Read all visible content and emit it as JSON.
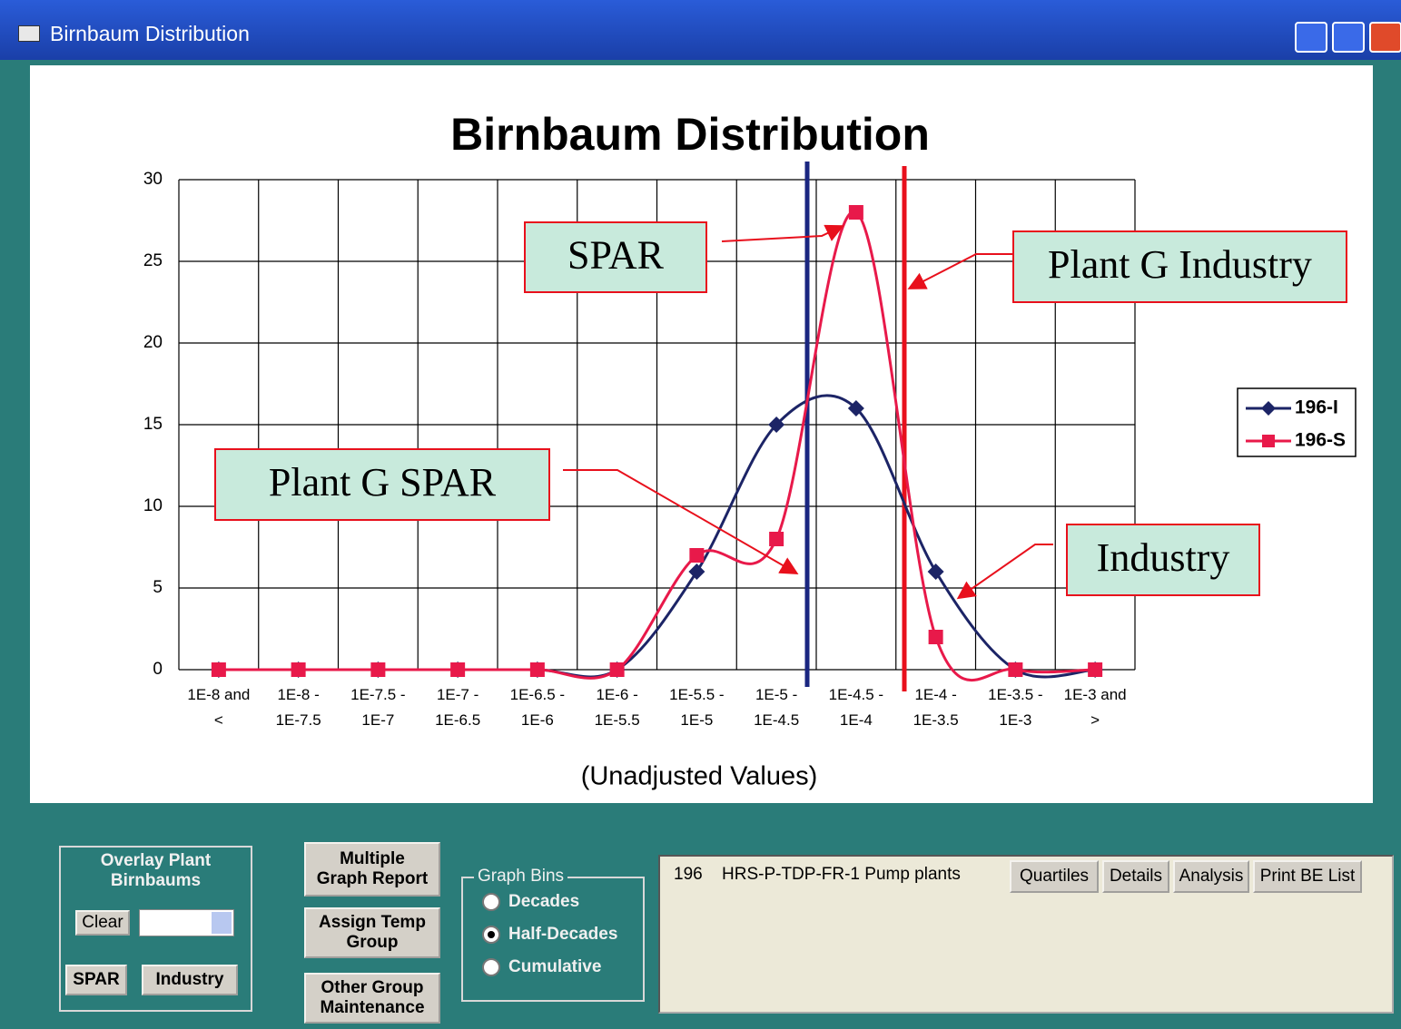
{
  "window": {
    "title": "Birnbaum Distribution"
  },
  "chart_data": {
    "type": "line",
    "title": "Birnbaum Distribution",
    "x_label": "(Unadjusted Values)",
    "categories": [
      "1E-8 and\n<",
      "1E-8 -\n1E-7.5",
      "1E-7.5 -\n1E-7",
      "1E-7 -\n1E-6.5",
      "1E-6.5 -\n1E-6",
      "1E-6 -\n1E-5.5",
      "1E-5.5 -\n1E-5",
      "1E-5 -\n1E-4.5",
      "1E-4.5 -\n1E-4",
      "1E-4 -\n1E-3.5",
      "1E-3.5 -\n1E-3",
      "1E-3 and\n>"
    ],
    "series": [
      {
        "name": "196-I",
        "color": "#1c2466",
        "marker": "diamond",
        "values": [
          0,
          0,
          0,
          0,
          0,
          0,
          6,
          15,
          16,
          6,
          0,
          0
        ]
      },
      {
        "name": "196-S",
        "color": "#e8194a",
        "marker": "square",
        "values": [
          0,
          0,
          0,
          0,
          0,
          0,
          7,
          8,
          28,
          2,
          0,
          0
        ]
      }
    ],
    "ylim": [
      0,
      30
    ],
    "yticks": [
      0,
      5,
      10,
      15,
      20,
      25,
      30
    ],
    "grid": true,
    "legend": "right",
    "annotations": [
      "SPAR",
      "Plant G Industry",
      "Plant G SPAR",
      "Industry"
    ]
  },
  "controls": {
    "overlay_group": {
      "label": "Overlay Plant\nBirnbaums",
      "clear": "Clear",
      "spar": "SPAR",
      "industry": "Industry"
    },
    "buttons": [
      "Multiple\nGraph Report",
      "Assign Temp\nGroup",
      "Other Group\nMaintenance"
    ],
    "graph_bins": {
      "label": "Graph Bins",
      "options": [
        "Decades",
        "Half-Decades",
        "Cumulative"
      ],
      "selected": 1
    },
    "list": {
      "row": [
        "196",
        "HRS-P-TDP-FR-1 Pump plants"
      ],
      "buttons": [
        "Quartiles",
        "Details",
        "Analysis",
        "Print BE List"
      ]
    }
  }
}
